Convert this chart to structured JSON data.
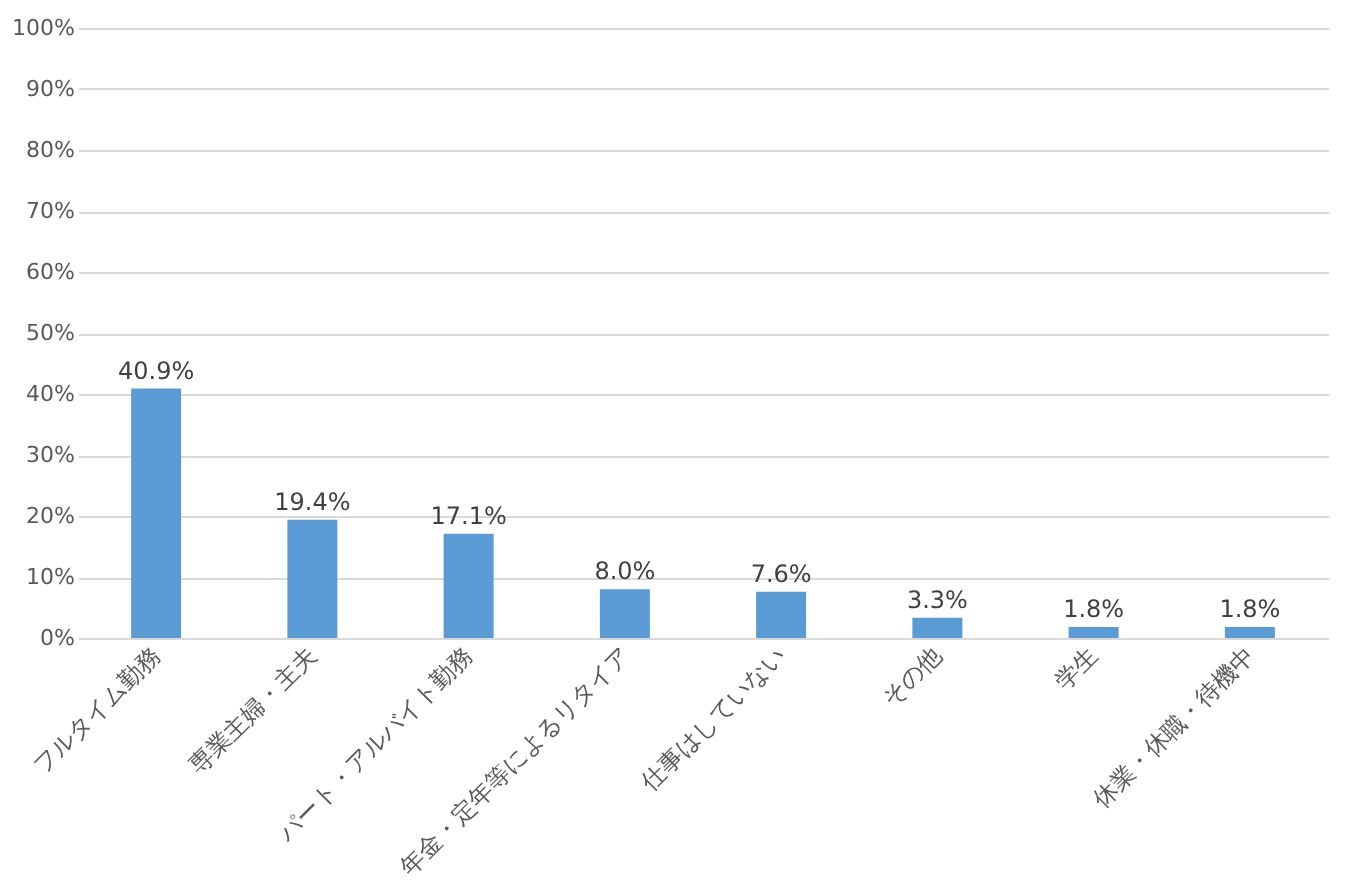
{
  "chart_data": {
    "type": "bar",
    "categories": [
      "フルタイム勤務",
      "専業主婦・主夫",
      "パート・アルバイト勤務",
      "年金・定年等によるリタイア",
      "仕事はしていない",
      "その他",
      "学生",
      "休業・休職・待機中"
    ],
    "values": [
      40.9,
      19.4,
      17.1,
      8.0,
      7.6,
      3.3,
      1.8,
      1.8
    ],
    "value_labels": [
      "40.9%",
      "19.4%",
      "17.1%",
      "8.0%",
      "7.6%",
      "3.3%",
      "1.8%",
      "1.8%"
    ],
    "color": "#5b9bd5",
    "ylim": [
      0,
      100
    ],
    "yticks": [
      {
        "value": 0,
        "label": "0%"
      },
      {
        "value": 10,
        "label": "10%"
      },
      {
        "value": 20,
        "label": "20%"
      },
      {
        "value": 30,
        "label": "30%"
      },
      {
        "value": 40,
        "label": "40%"
      },
      {
        "value": 50,
        "label": "50%"
      },
      {
        "value": 60,
        "label": "60%"
      },
      {
        "value": 70,
        "label": "70%"
      },
      {
        "value": 80,
        "label": "80%"
      },
      {
        "value": 90,
        "label": "90%"
      },
      {
        "value": 100,
        "label": "100%"
      }
    ],
    "grid": "y"
  }
}
